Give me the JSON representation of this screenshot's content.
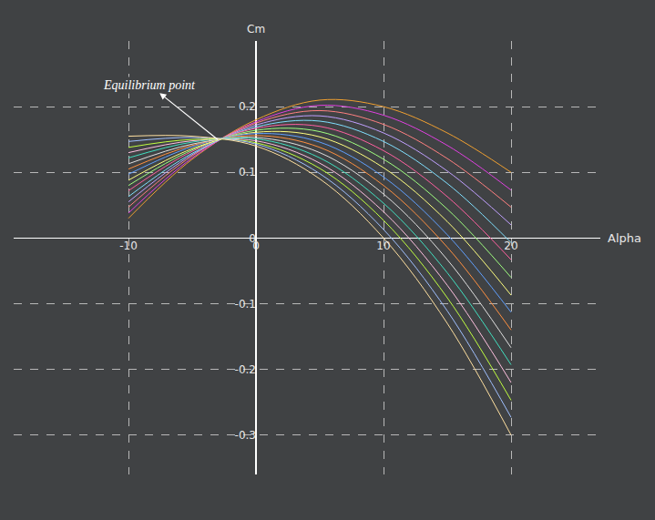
{
  "chart_data": {
    "type": "line",
    "x_label": "Alpha",
    "y_label": "Cm",
    "x": [
      -10,
      -5,
      0,
      5,
      10,
      15,
      20
    ],
    "series": [
      {
        "color": "#f0a030",
        "values": [
          0.03,
          0.12,
          0.18,
          0.21,
          0.2,
          0.16,
          0.1
        ]
      },
      {
        "color": "#e040e0",
        "values": [
          0.038,
          0.122,
          0.177,
          0.202,
          0.187,
          0.141,
          0.073
        ]
      },
      {
        "color": "#ff8080",
        "values": [
          0.047,
          0.125,
          0.175,
          0.194,
          0.173,
          0.121,
          0.047
        ]
      },
      {
        "color": "#c0a0ff",
        "values": [
          0.055,
          0.127,
          0.172,
          0.186,
          0.16,
          0.102,
          0.02
        ]
      },
      {
        "color": "#80e0ff",
        "values": [
          0.063,
          0.129,
          0.169,
          0.178,
          0.147,
          0.083,
          -0.007
        ]
      },
      {
        "color": "#ff60a0",
        "values": [
          0.072,
          0.132,
          0.167,
          0.17,
          0.133,
          0.063,
          -0.033
        ]
      },
      {
        "color": "#a0ff80",
        "values": [
          0.08,
          0.134,
          0.164,
          0.162,
          0.12,
          0.044,
          -0.06
        ]
      },
      {
        "color": "#ffff80",
        "values": [
          0.088,
          0.136,
          0.161,
          0.154,
          0.107,
          0.025,
          -0.087
        ]
      },
      {
        "color": "#60a0ff",
        "values": [
          0.097,
          0.139,
          0.159,
          0.146,
          0.093,
          0.005,
          -0.113
        ]
      },
      {
        "color": "#ff9040",
        "values": [
          0.105,
          0.141,
          0.156,
          0.138,
          0.08,
          -0.014,
          -0.14
        ]
      },
      {
        "color": "#e0e0e0",
        "values": [
          0.113,
          0.143,
          0.153,
          0.13,
          0.067,
          -0.033,
          -0.167
        ]
      },
      {
        "color": "#40e0c0",
        "values": [
          0.122,
          0.146,
          0.151,
          0.122,
          0.053,
          -0.053,
          -0.193
        ]
      },
      {
        "color": "#ffc0e0",
        "values": [
          0.13,
          0.148,
          0.148,
          0.114,
          0.04,
          -0.072,
          -0.22
        ]
      },
      {
        "color": "#c0ff40",
        "values": [
          0.138,
          0.15,
          0.145,
          0.106,
          0.027,
          -0.091,
          -0.247
        ]
      },
      {
        "color": "#a0c0ff",
        "values": [
          0.147,
          0.153,
          0.143,
          0.098,
          0.013,
          -0.111,
          -0.273
        ]
      },
      {
        "color": "#ffe0a0",
        "values": [
          0.155,
          0.155,
          0.14,
          0.09,
          0,
          -0.13,
          -0.3
        ]
      }
    ],
    "xlim": [
      -19,
      27
    ],
    "ylim": [
      -0.36,
      0.3
    ],
    "xticks": [
      -10,
      0,
      10,
      20
    ],
    "yticks": [
      -0.3,
      -0.2,
      -0.1,
      0,
      0.1,
      0.2
    ],
    "grid": true,
    "annotations": [
      {
        "text": "Equilibrium point",
        "x": -3,
        "y": 0.15
      }
    ]
  }
}
